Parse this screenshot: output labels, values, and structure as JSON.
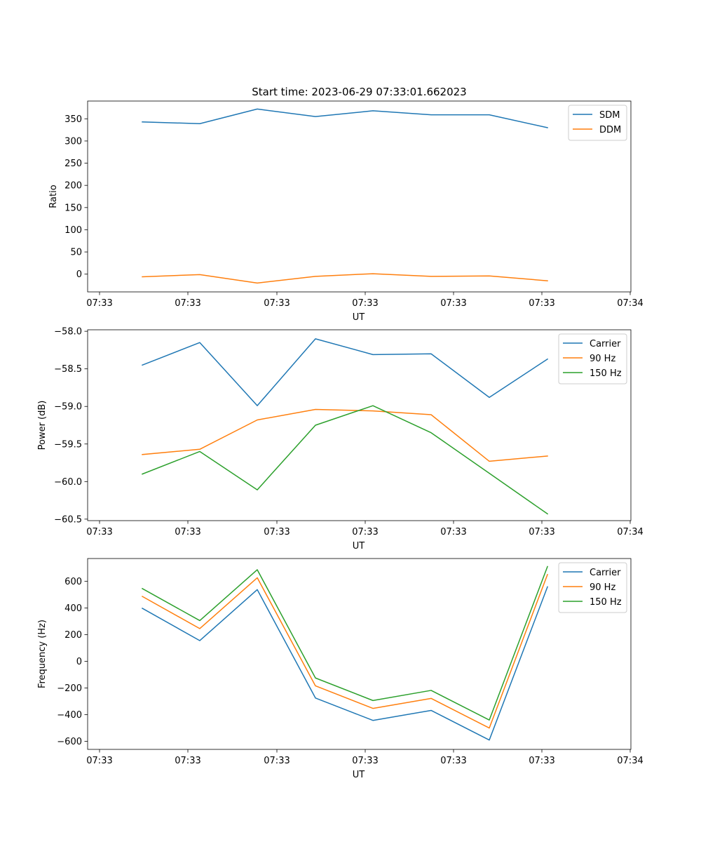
{
  "chart_data": [
    {
      "type": "line",
      "title": "Start time: 2023-06-29 07:33:01.662023",
      "xlabel": "UT",
      "ylabel": "Ratio",
      "xticks": [
        "07:33",
        "07:33",
        "07:33",
        "07:33",
        "07:33",
        "07:33",
        "07:34"
      ],
      "yticks": [
        "0",
        "50",
        "100",
        "150",
        "200",
        "250",
        "300",
        "350"
      ],
      "ylim": [
        -40,
        390
      ],
      "legend": "top-right",
      "grid": false,
      "series": [
        {
          "name": "SDM",
          "color": "#1f77b4",
          "values": [
            343,
            339,
            372,
            355,
            368,
            359,
            359,
            330
          ]
        },
        {
          "name": "DDM",
          "color": "#ff7f0e",
          "values": [
            -6,
            -1,
            -20,
            -5,
            1,
            -5,
            -4,
            -15
          ]
        }
      ]
    },
    {
      "type": "line",
      "title": "",
      "xlabel": "UT",
      "ylabel": "Power (dB)",
      "xticks": [
        "07:33",
        "07:33",
        "07:33",
        "07:33",
        "07:33",
        "07:33",
        "07:34"
      ],
      "yticks": [
        "−60.5",
        "−60.0",
        "−59.5",
        "−59.0",
        "−58.5",
        "−58.0"
      ],
      "ylim": [
        -60.52,
        -57.98
      ],
      "legend": "top-right",
      "grid": false,
      "series": [
        {
          "name": "Carrier",
          "color": "#1f77b4",
          "values": [
            -58.45,
            -58.15,
            -58.99,
            -58.1,
            -58.31,
            -58.3,
            -58.88,
            -58.37
          ]
        },
        {
          "name": "90 Hz",
          "color": "#ff7f0e",
          "values": [
            -59.64,
            -59.57,
            -59.18,
            -59.04,
            -59.06,
            -59.11,
            -59.73,
            -59.66
          ]
        },
        {
          "name": "150 Hz",
          "color": "#2ca02c",
          "values": [
            -59.9,
            -59.6,
            -60.11,
            -59.25,
            -58.99,
            -59.35,
            -59.89,
            -60.43
          ]
        }
      ]
    },
    {
      "type": "line",
      "title": "",
      "xlabel": "UT",
      "ylabel": "Frequency (Hz)",
      "xticks": [
        "07:33",
        "07:33",
        "07:33",
        "07:33",
        "07:33",
        "07:33",
        "07:34"
      ],
      "yticks": [
        "−600",
        "−400",
        "−200",
        "0",
        "200",
        "400",
        "600"
      ],
      "ylim": [
        -660,
        770
      ],
      "legend": "top-right",
      "grid": false,
      "series": [
        {
          "name": "Carrier",
          "color": "#1f77b4",
          "values": [
            397,
            155,
            537,
            -275,
            -443,
            -368,
            -590,
            558
          ]
        },
        {
          "name": "90 Hz",
          "color": "#ff7f0e",
          "values": [
            486,
            245,
            626,
            -184,
            -353,
            -278,
            -500,
            650
          ]
        },
        {
          "name": "150 Hz",
          "color": "#2ca02c",
          "values": [
            545,
            305,
            686,
            -125,
            -294,
            -218,
            -440,
            710
          ]
        }
      ]
    }
  ]
}
